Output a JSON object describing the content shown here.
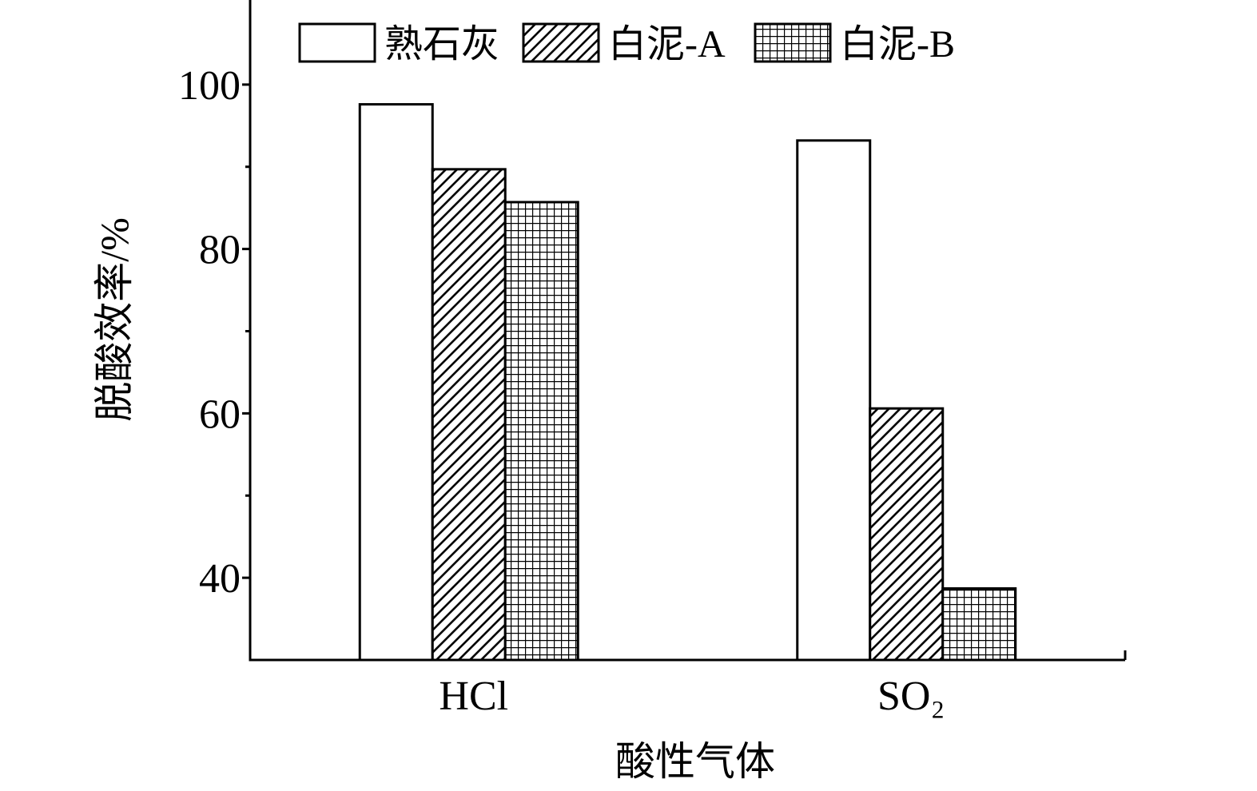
{
  "chart_data": {
    "type": "bar",
    "categories": [
      "HCl",
      "SO₂"
    ],
    "series": [
      {
        "name": "熟石灰",
        "values": [
          97.6,
          93.2
        ],
        "fill_pattern": "solid-white"
      },
      {
        "name": "白泥-A",
        "values": [
          89.7,
          60.6
        ],
        "fill_pattern": "diagonal-lines"
      },
      {
        "name": "白泥-B",
        "values": [
          85.7,
          38.7
        ],
        "fill_pattern": "grid"
      }
    ],
    "xlabel": "酸性气体",
    "ylabel": "脱酸效率/%",
    "ylim": [
      30,
      110
    ],
    "yticks": [
      40,
      60,
      80,
      100
    ],
    "y_minor_ticks": [
      50,
      70,
      90
    ],
    "grid": false,
    "legend": "top"
  },
  "colors": {
    "outline": "#000000",
    "background": "#ffffff"
  }
}
